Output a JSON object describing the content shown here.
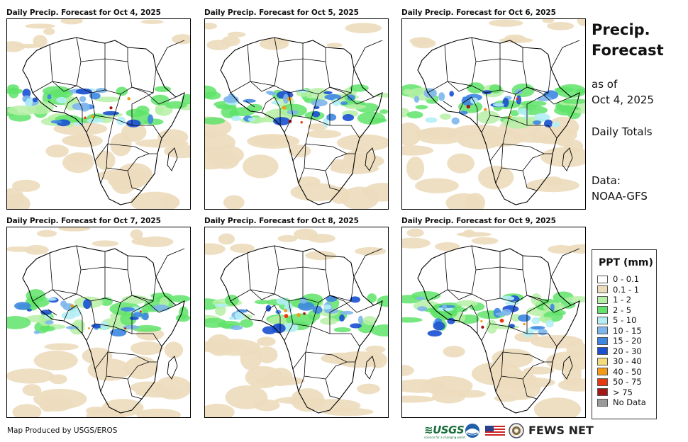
{
  "panels": [
    {
      "title": "Daily Precip. Forecast for Oct 4, 2025"
    },
    {
      "title": "Daily Precip. Forecast for Oct 5, 2025"
    },
    {
      "title": "Daily Precip. Forecast for Oct 6, 2025"
    },
    {
      "title": "Daily Precip. Forecast for Oct 7, 2025"
    },
    {
      "title": "Daily Precip. Forecast for Oct 8, 2025"
    },
    {
      "title": "Daily Precip. Forecast for Oct 9, 2025"
    }
  ],
  "side": {
    "title_line1": "Precip.",
    "title_line2": "Forecast",
    "asof_line1": "as of",
    "asof_line2": "Oct 4, 2025",
    "totals": "Daily Totals",
    "data_line1": "Data:",
    "data_line2": "NOAA-GFS"
  },
  "legend": {
    "title": "PPT (mm)",
    "items": [
      {
        "label": "0 - 0.1",
        "color": "#ffffff"
      },
      {
        "label": "0.1 - 1",
        "color": "#ecdcbc"
      },
      {
        "label": "1 - 2",
        "color": "#b6f0a6"
      },
      {
        "label": "2 - 5",
        "color": "#5fe36a"
      },
      {
        "label": "5 - 10",
        "color": "#b3eef5"
      },
      {
        "label": "10 - 15",
        "color": "#7db6ec"
      },
      {
        "label": "15 - 20",
        "color": "#3d86e2"
      },
      {
        "label": "20 - 30",
        "color": "#1a4fd1"
      },
      {
        "label": "30 - 40",
        "color": "#f5dc7a"
      },
      {
        "label": "40 - 50",
        "color": "#f39a16"
      },
      {
        "label": "50 - 75",
        "color": "#e83a10"
      },
      {
        "label": "> 75",
        "color": "#a41714"
      },
      {
        "label": "No Data",
        "color": "#9a9a9a"
      }
    ]
  },
  "footer": {
    "credit": "Map Produced by USGS/EROS",
    "usgs": "≋USGS",
    "usgs_tagline": "science for a changing world",
    "fews": "FEWS NET"
  }
}
